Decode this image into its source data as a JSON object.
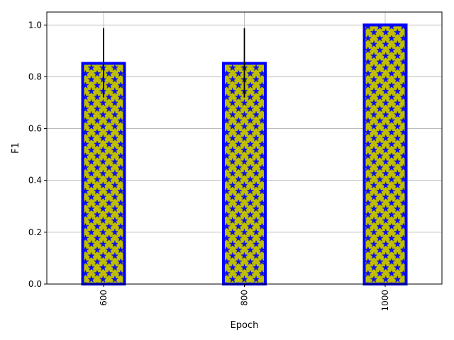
{
  "chart_data": {
    "type": "bar",
    "title": "",
    "xlabel": "Epoch",
    "ylabel": "F1",
    "categories": [
      "600",
      "800",
      "1000"
    ],
    "values": [
      0.852,
      0.852,
      1.0
    ],
    "error_upper": [
      0.988,
      0.988,
      1.0
    ],
    "error_lower": [
      0.72,
      0.72,
      1.0
    ],
    "ylim": [
      0,
      1.05
    ],
    "yticks": [
      0.0,
      0.2,
      0.4,
      0.6,
      0.8,
      1.0
    ],
    "ytick_labels": [
      "0.0",
      "0.2",
      "0.4",
      "0.6",
      "0.8",
      "1.0"
    ],
    "grid": true,
    "bar_fill_color": "#bfbf00",
    "bar_edge_color": "#0000ff",
    "hatch_color": "#0000ff",
    "hatch_pattern": "stars-and-circles",
    "error_bar_color": "#000000"
  }
}
